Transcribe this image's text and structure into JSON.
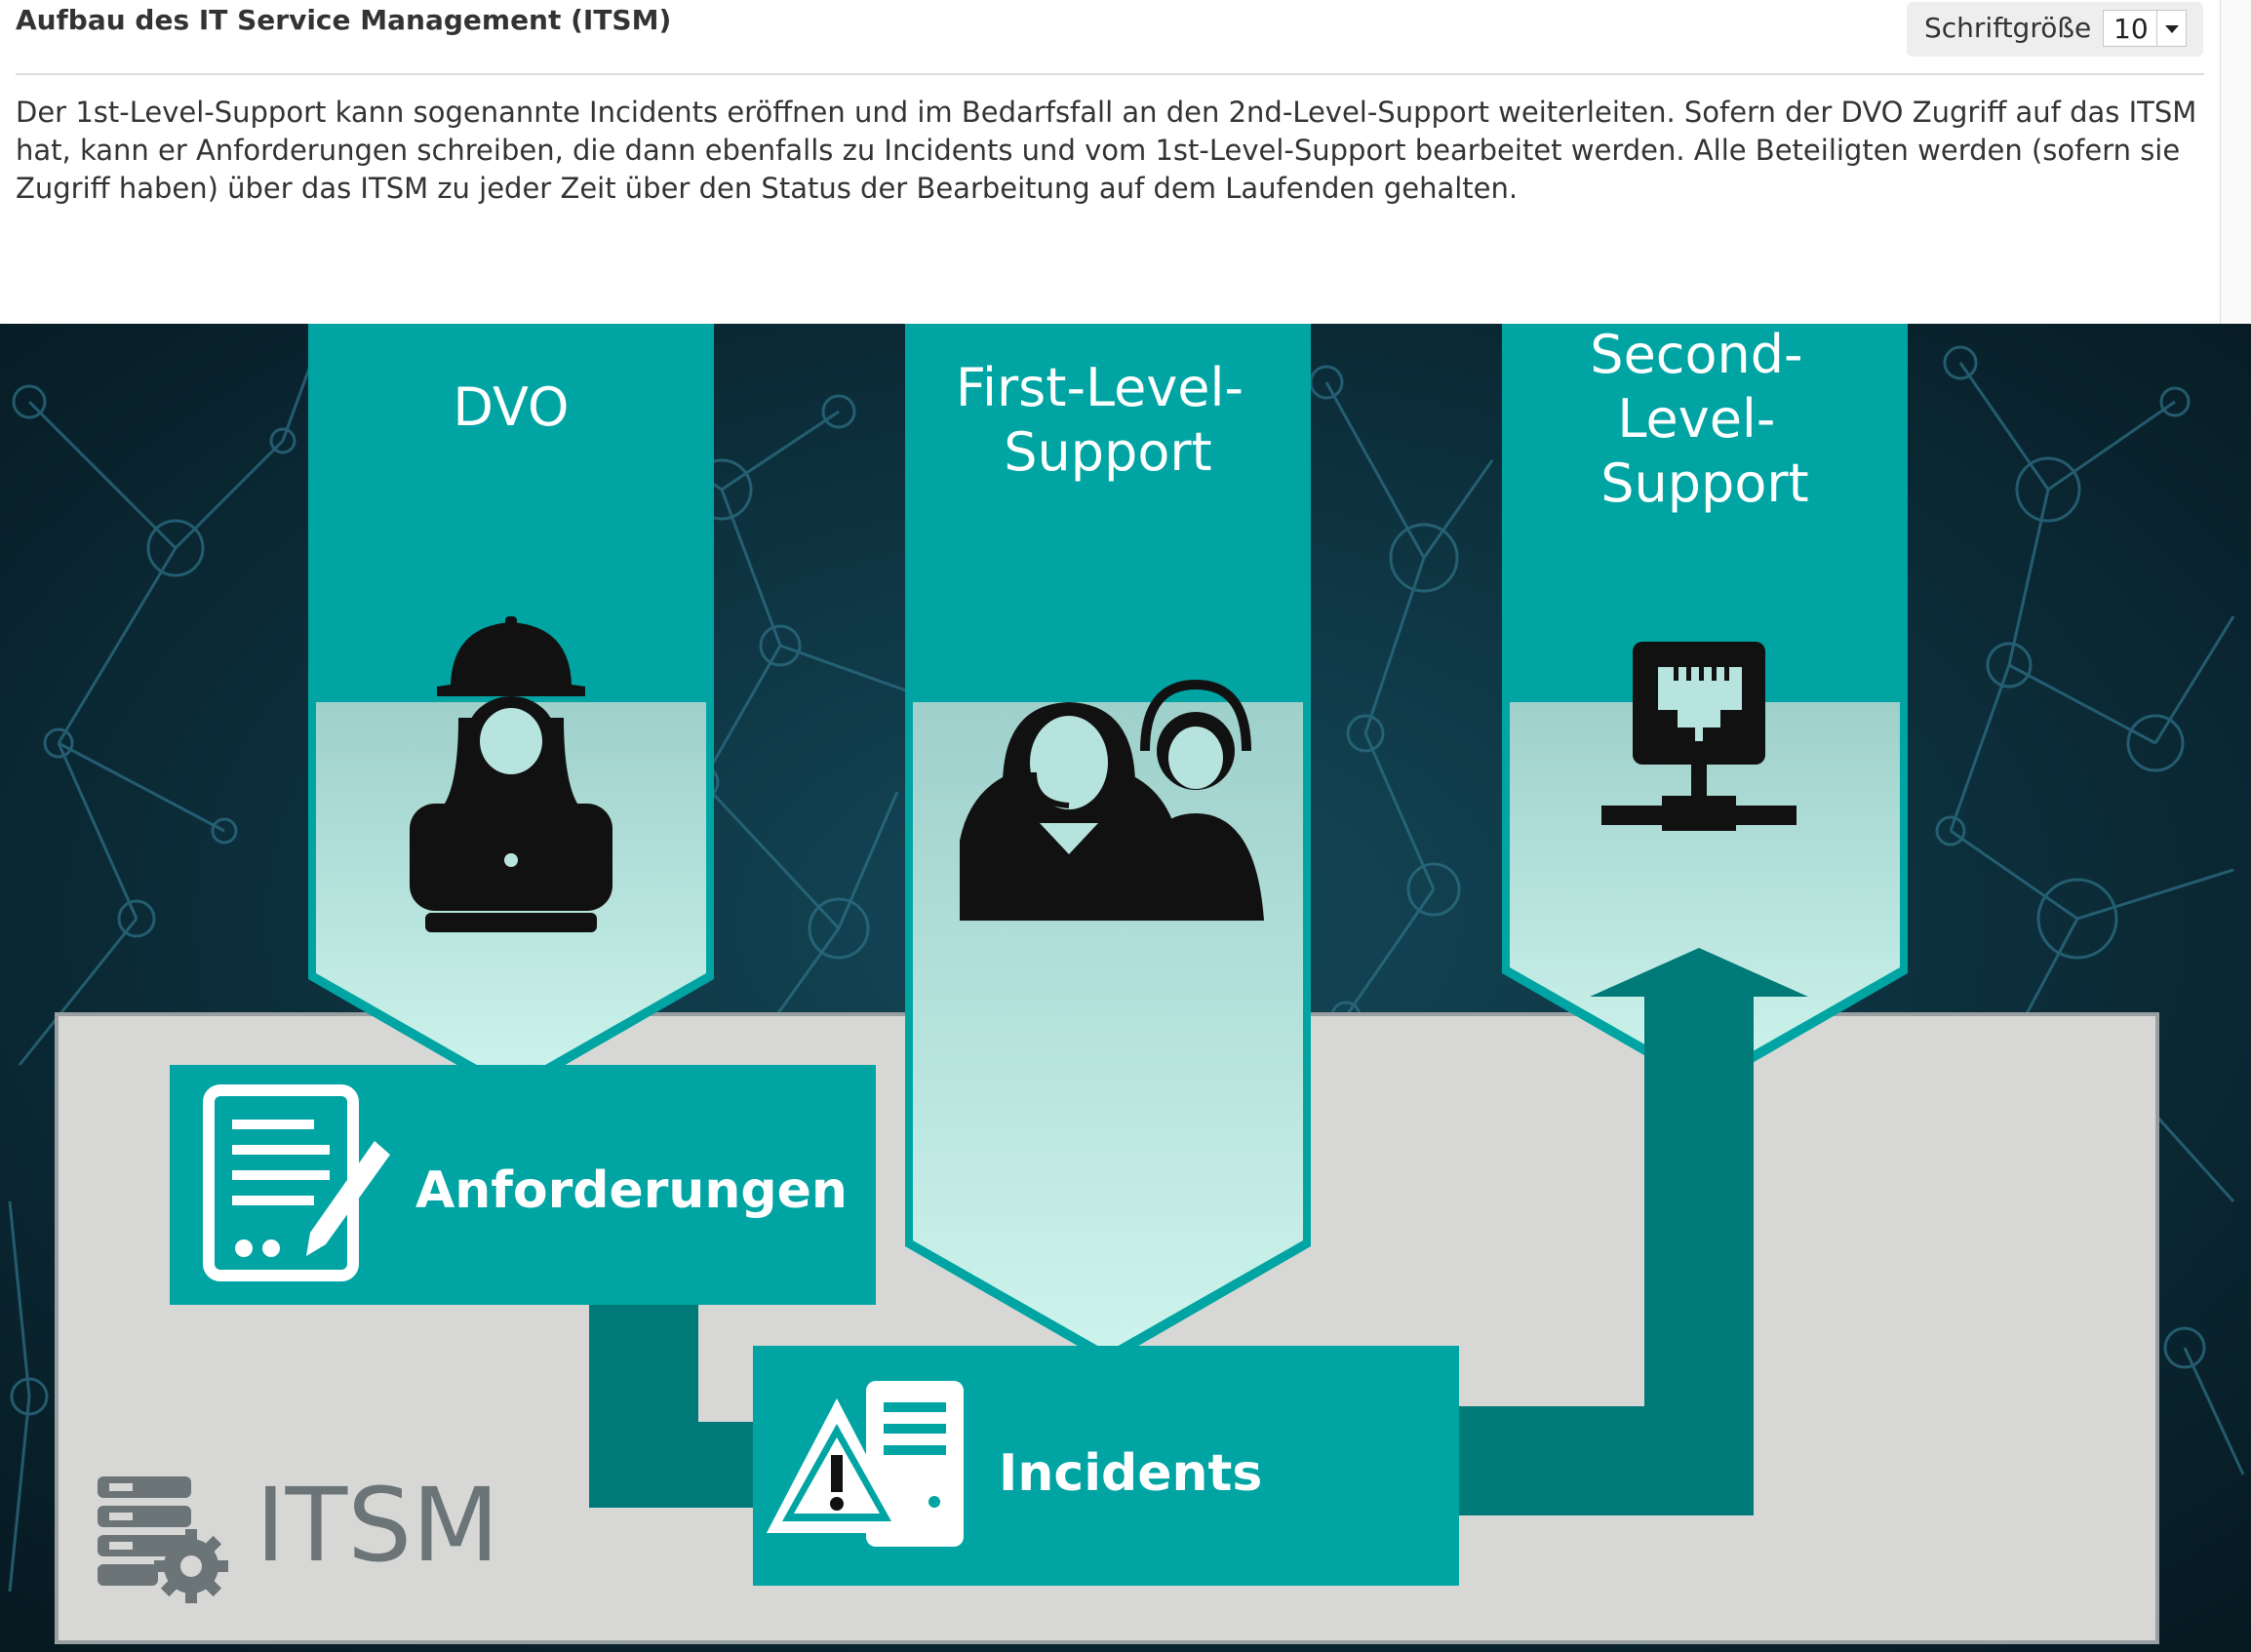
{
  "header": {
    "title": "Aufbau des IT Service Management (ITSM)",
    "font_size_label": "Schriftgröße",
    "font_size_value": "10"
  },
  "intro": "Der 1st-Level-Support kann sogenannte Incidents eröffnen und im Bedarfsfall an den 2nd-Level-Support weiterleiten. Sofern der DVO Zugriff auf das ITSM hat, kann er Anforderungen schreiben, die dann ebenfalls zu Incidents und vom 1st-Level-Support bearbeitet werden. Alle Beteiligten werden (sofern sie Zugriff haben) über das ITSM zu jeder Zeit über den Status der Bearbeitung auf dem Laufenden gehalten.",
  "diagram": {
    "columns": {
      "dvo": [
        "DVO"
      ],
      "first_level": [
        "First-Level-",
        "Support"
      ],
      "second_level": [
        "Second-",
        "Level-",
        "Support"
      ]
    },
    "boxes": {
      "requests": "Anforderungen",
      "incidents": "Incidents"
    },
    "system_label": "ITSM",
    "icons": [
      "worker-laptop-icon",
      "headset-agents-icon",
      "network-port-icon",
      "document-pen-icon",
      "warning-server-icon",
      "server-gear-icon"
    ],
    "colors": {
      "teal": "#00a5a3",
      "dark_teal": "#007a79",
      "panel_grey": "#d7d8d6",
      "background": "#0b2530",
      "icon_dark": "#111111",
      "itsm_grey": "#6b7477"
    }
  }
}
